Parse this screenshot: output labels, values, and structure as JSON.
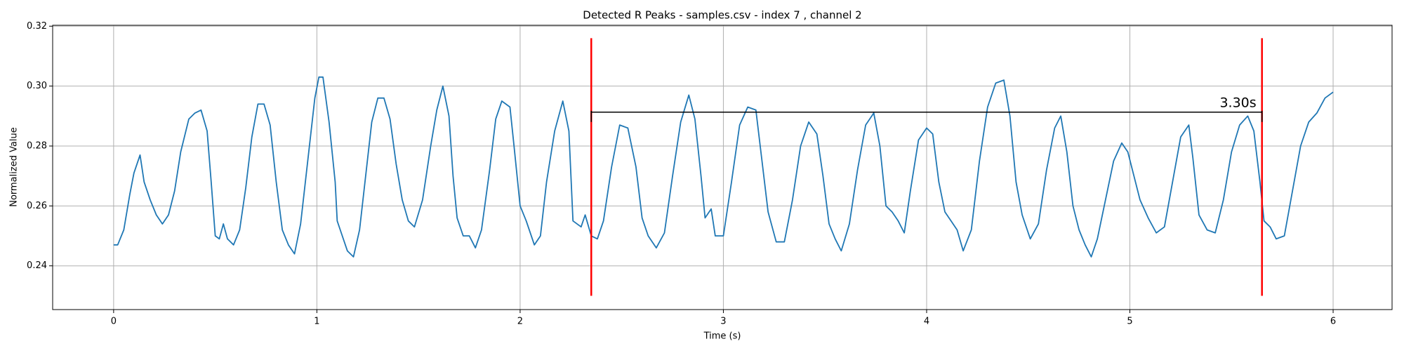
{
  "chart_data": {
    "type": "line",
    "title": "Detected R Peaks - samples.csv - index 7 , channel 2",
    "x_label": "Time (s)",
    "y_label": "Normalized Value",
    "x": [
      0,
      0.02,
      0.05,
      0.08,
      0.1,
      0.13,
      0.15,
      0.18,
      0.21,
      0.24,
      0.27,
      0.3,
      0.33,
      0.37,
      0.4,
      0.43,
      0.46,
      0.48,
      0.5,
      0.52,
      0.54,
      0.56,
      0.59,
      0.62,
      0.65,
      0.68,
      0.71,
      0.74,
      0.77,
      0.8,
      0.83,
      0.86,
      0.89,
      0.92,
      0.96,
      0.99,
      1.01,
      1.03,
      1.06,
      1.09,
      1.1,
      1.12,
      1.15,
      1.18,
      1.21,
      1.24,
      1.27,
      1.3,
      1.33,
      1.36,
      1.39,
      1.42,
      1.45,
      1.48,
      1.52,
      1.56,
      1.59,
      1.62,
      1.65,
      1.67,
      1.69,
      1.72,
      1.75,
      1.78,
      1.81,
      1.85,
      1.88,
      1.91,
      1.95,
      1.97,
      2.0,
      2.03,
      2.07,
      2.1,
      2.13,
      2.17,
      2.21,
      2.24,
      2.26,
      2.3,
      2.32,
      2.35,
      2.38,
      2.41,
      2.45,
      2.49,
      2.53,
      2.57,
      2.6,
      2.63,
      2.67,
      2.71,
      2.75,
      2.79,
      2.83,
      2.86,
      2.89,
      2.91,
      2.94,
      2.96,
      3.0,
      3.04,
      3.08,
      3.12,
      3.16,
      3.19,
      3.22,
      3.26,
      3.3,
      3.34,
      3.38,
      3.42,
      3.46,
      3.49,
      3.52,
      3.55,
      3.58,
      3.62,
      3.66,
      3.7,
      3.74,
      3.77,
      3.8,
      3.83,
      3.86,
      3.89,
      3.92,
      3.96,
      4.0,
      4.03,
      4.06,
      4.09,
      4.12,
      4.15,
      4.18,
      4.22,
      4.26,
      4.3,
      4.34,
      4.38,
      4.41,
      4.44,
      4.47,
      4.51,
      4.55,
      4.59,
      4.63,
      4.66,
      4.69,
      4.72,
      4.75,
      4.78,
      4.81,
      4.84,
      4.88,
      4.92,
      4.96,
      4.99,
      5.02,
      5.05,
      5.09,
      5.13,
      5.17,
      5.21,
      5.25,
      5.29,
      5.31,
      5.34,
      5.38,
      5.42,
      5.46,
      5.5,
      5.54,
      5.58,
      5.61,
      5.64,
      5.66,
      5.69,
      5.72,
      5.76,
      5.8,
      5.84,
      5.88,
      5.92,
      5.96,
      6.0
    ],
    "series": [
      {
        "color": "#1f77b4",
        "values": [
          0.247,
          0.247,
          0.252,
          0.264,
          0.271,
          0.277,
          0.268,
          0.262,
          0.257,
          0.254,
          0.257,
          0.265,
          0.278,
          0.289,
          0.291,
          0.292,
          0.285,
          0.268,
          0.25,
          0.249,
          0.254,
          0.249,
          0.247,
          0.252,
          0.266,
          0.283,
          0.294,
          0.294,
          0.287,
          0.268,
          0.252,
          0.247,
          0.244,
          0.254,
          0.278,
          0.296,
          0.303,
          0.303,
          0.288,
          0.268,
          0.255,
          0.251,
          0.245,
          0.243,
          0.252,
          0.27,
          0.288,
          0.296,
          0.296,
          0.289,
          0.274,
          0.262,
          0.255,
          0.253,
          0.262,
          0.28,
          0.292,
          0.3,
          0.29,
          0.27,
          0.256,
          0.25,
          0.25,
          0.246,
          0.252,
          0.272,
          0.289,
          0.295,
          0.293,
          0.28,
          0.26,
          0.255,
          0.247,
          0.25,
          0.268,
          0.285,
          0.295,
          0.285,
          0.255,
          0.253,
          0.257,
          0.25,
          0.249,
          0.255,
          0.273,
          0.287,
          0.286,
          0.273,
          0.256,
          0.25,
          0.246,
          0.251,
          0.27,
          0.288,
          0.297,
          0.289,
          0.27,
          0.256,
          0.259,
          0.25,
          0.25,
          0.268,
          0.287,
          0.293,
          0.292,
          0.275,
          0.258,
          0.248,
          0.248,
          0.262,
          0.28,
          0.288,
          0.284,
          0.27,
          0.254,
          0.249,
          0.245,
          0.254,
          0.272,
          0.287,
          0.291,
          0.28,
          0.26,
          0.258,
          0.255,
          0.251,
          0.265,
          0.282,
          0.286,
          0.284,
          0.268,
          0.258,
          0.255,
          0.252,
          0.245,
          0.252,
          0.275,
          0.293,
          0.301,
          0.302,
          0.29,
          0.268,
          0.257,
          0.249,
          0.254,
          0.272,
          0.286,
          0.29,
          0.278,
          0.26,
          0.252,
          0.247,
          0.243,
          0.249,
          0.262,
          0.275,
          0.281,
          0.278,
          0.27,
          0.262,
          0.256,
          0.251,
          0.253,
          0.268,
          0.283,
          0.287,
          0.276,
          0.257,
          0.252,
          0.251,
          0.262,
          0.278,
          0.287,
          0.29,
          0.285,
          0.268,
          0.255,
          0.253,
          0.249,
          0.25,
          0.265,
          0.28,
          0.288,
          0.291,
          0.296,
          0.298
        ]
      }
    ],
    "r_peaks": {
      "x": [
        2.35,
        5.65
      ],
      "ymin": 0.23,
      "ymax": 0.316,
      "color": "red"
    },
    "annotation": {
      "text": "3.30s",
      "x": [
        2.35,
        5.65
      ],
      "y": 0.2913,
      "color": "black"
    },
    "xlim": [
      -0.3,
      6.29
    ],
    "ylim": [
      0.2254,
      0.3203
    ],
    "xticks": [
      0,
      1,
      2,
      3,
      4,
      5,
      6
    ],
    "yticks": [
      0.24,
      0.26,
      0.28,
      {
        "value": 0.3,
        "label": "0.30"
      },
      0.32
    ],
    "grid": true
  }
}
